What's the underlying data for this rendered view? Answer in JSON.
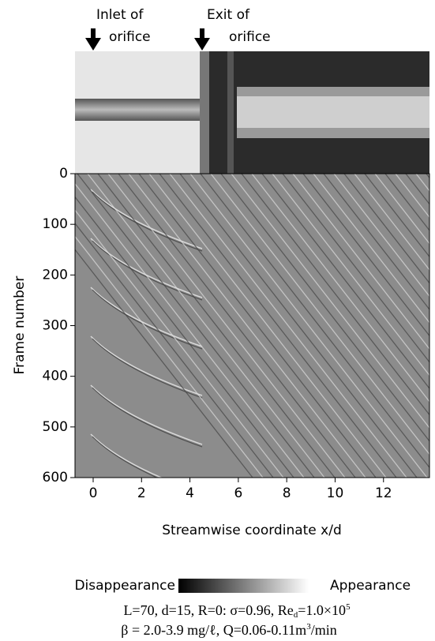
{
  "chart_data": {
    "type": "image",
    "x_label": "Streamwise coordinate x/d",
    "y_label": "Frame number",
    "xlim": [
      -0.75,
      13.9
    ],
    "xticks": [
      0,
      2,
      4,
      6,
      8,
      10,
      12
    ],
    "ylim": [
      0,
      600
    ],
    "yticks": [
      0,
      100,
      200,
      300,
      400,
      500,
      600
    ],
    "y_inverted": true,
    "annotations": [
      "Inlet of",
      "orifice",
      "Exit of",
      "orifice"
    ],
    "colorbar_labels": [
      "Disappearance",
      "Appearance"
    ],
    "caption_line1": [
      "L=70, d=15, R=0: σ=0.96,  Re",
      "d",
      "=1.0×10",
      "5"
    ],
    "caption_line2": [
      "β = 2.0-3.9 mg/ℓ,  Q=0.06-0.11m",
      "3",
      "/min"
    ]
  }
}
